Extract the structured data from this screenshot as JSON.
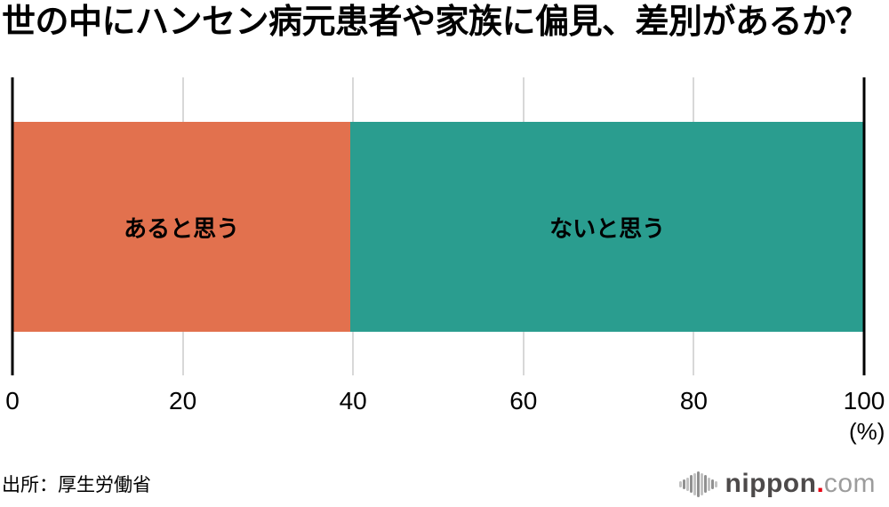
{
  "title": "世の中にハンセン病元患者や家族に偏見、差別があるか？",
  "chart_data": {
    "type": "bar",
    "orientation": "horizontal",
    "stacked": true,
    "title": "世の中にハンセン病元患者や家族に偏見、差別があるか？",
    "categories": [
      "あると思う",
      "ないと思う"
    ],
    "values": [
      39.7,
      60.3
    ],
    "colors": [
      "#E2714E",
      "#2A9D8F"
    ],
    "xlim": [
      0,
      100
    ],
    "xticks": [
      0,
      20,
      40,
      60,
      80,
      100
    ],
    "unit_label": "(%)",
    "grid": "vertical",
    "grid_color": "#D8D8D8",
    "axis_line_color": "#000000",
    "label_color": "#000000"
  },
  "source": {
    "label": "出所：厚生労働省"
  },
  "logo": {
    "icon": "soundwave-icon",
    "brand": "nippon",
    "dot": ".",
    "tld": "com",
    "colors": {
      "brand": "#4D4A4A",
      "dot": "#E60012",
      "tld": "#9C9C9C",
      "icon_light": "#C2C2C2",
      "icon_dark": "#909090"
    }
  }
}
